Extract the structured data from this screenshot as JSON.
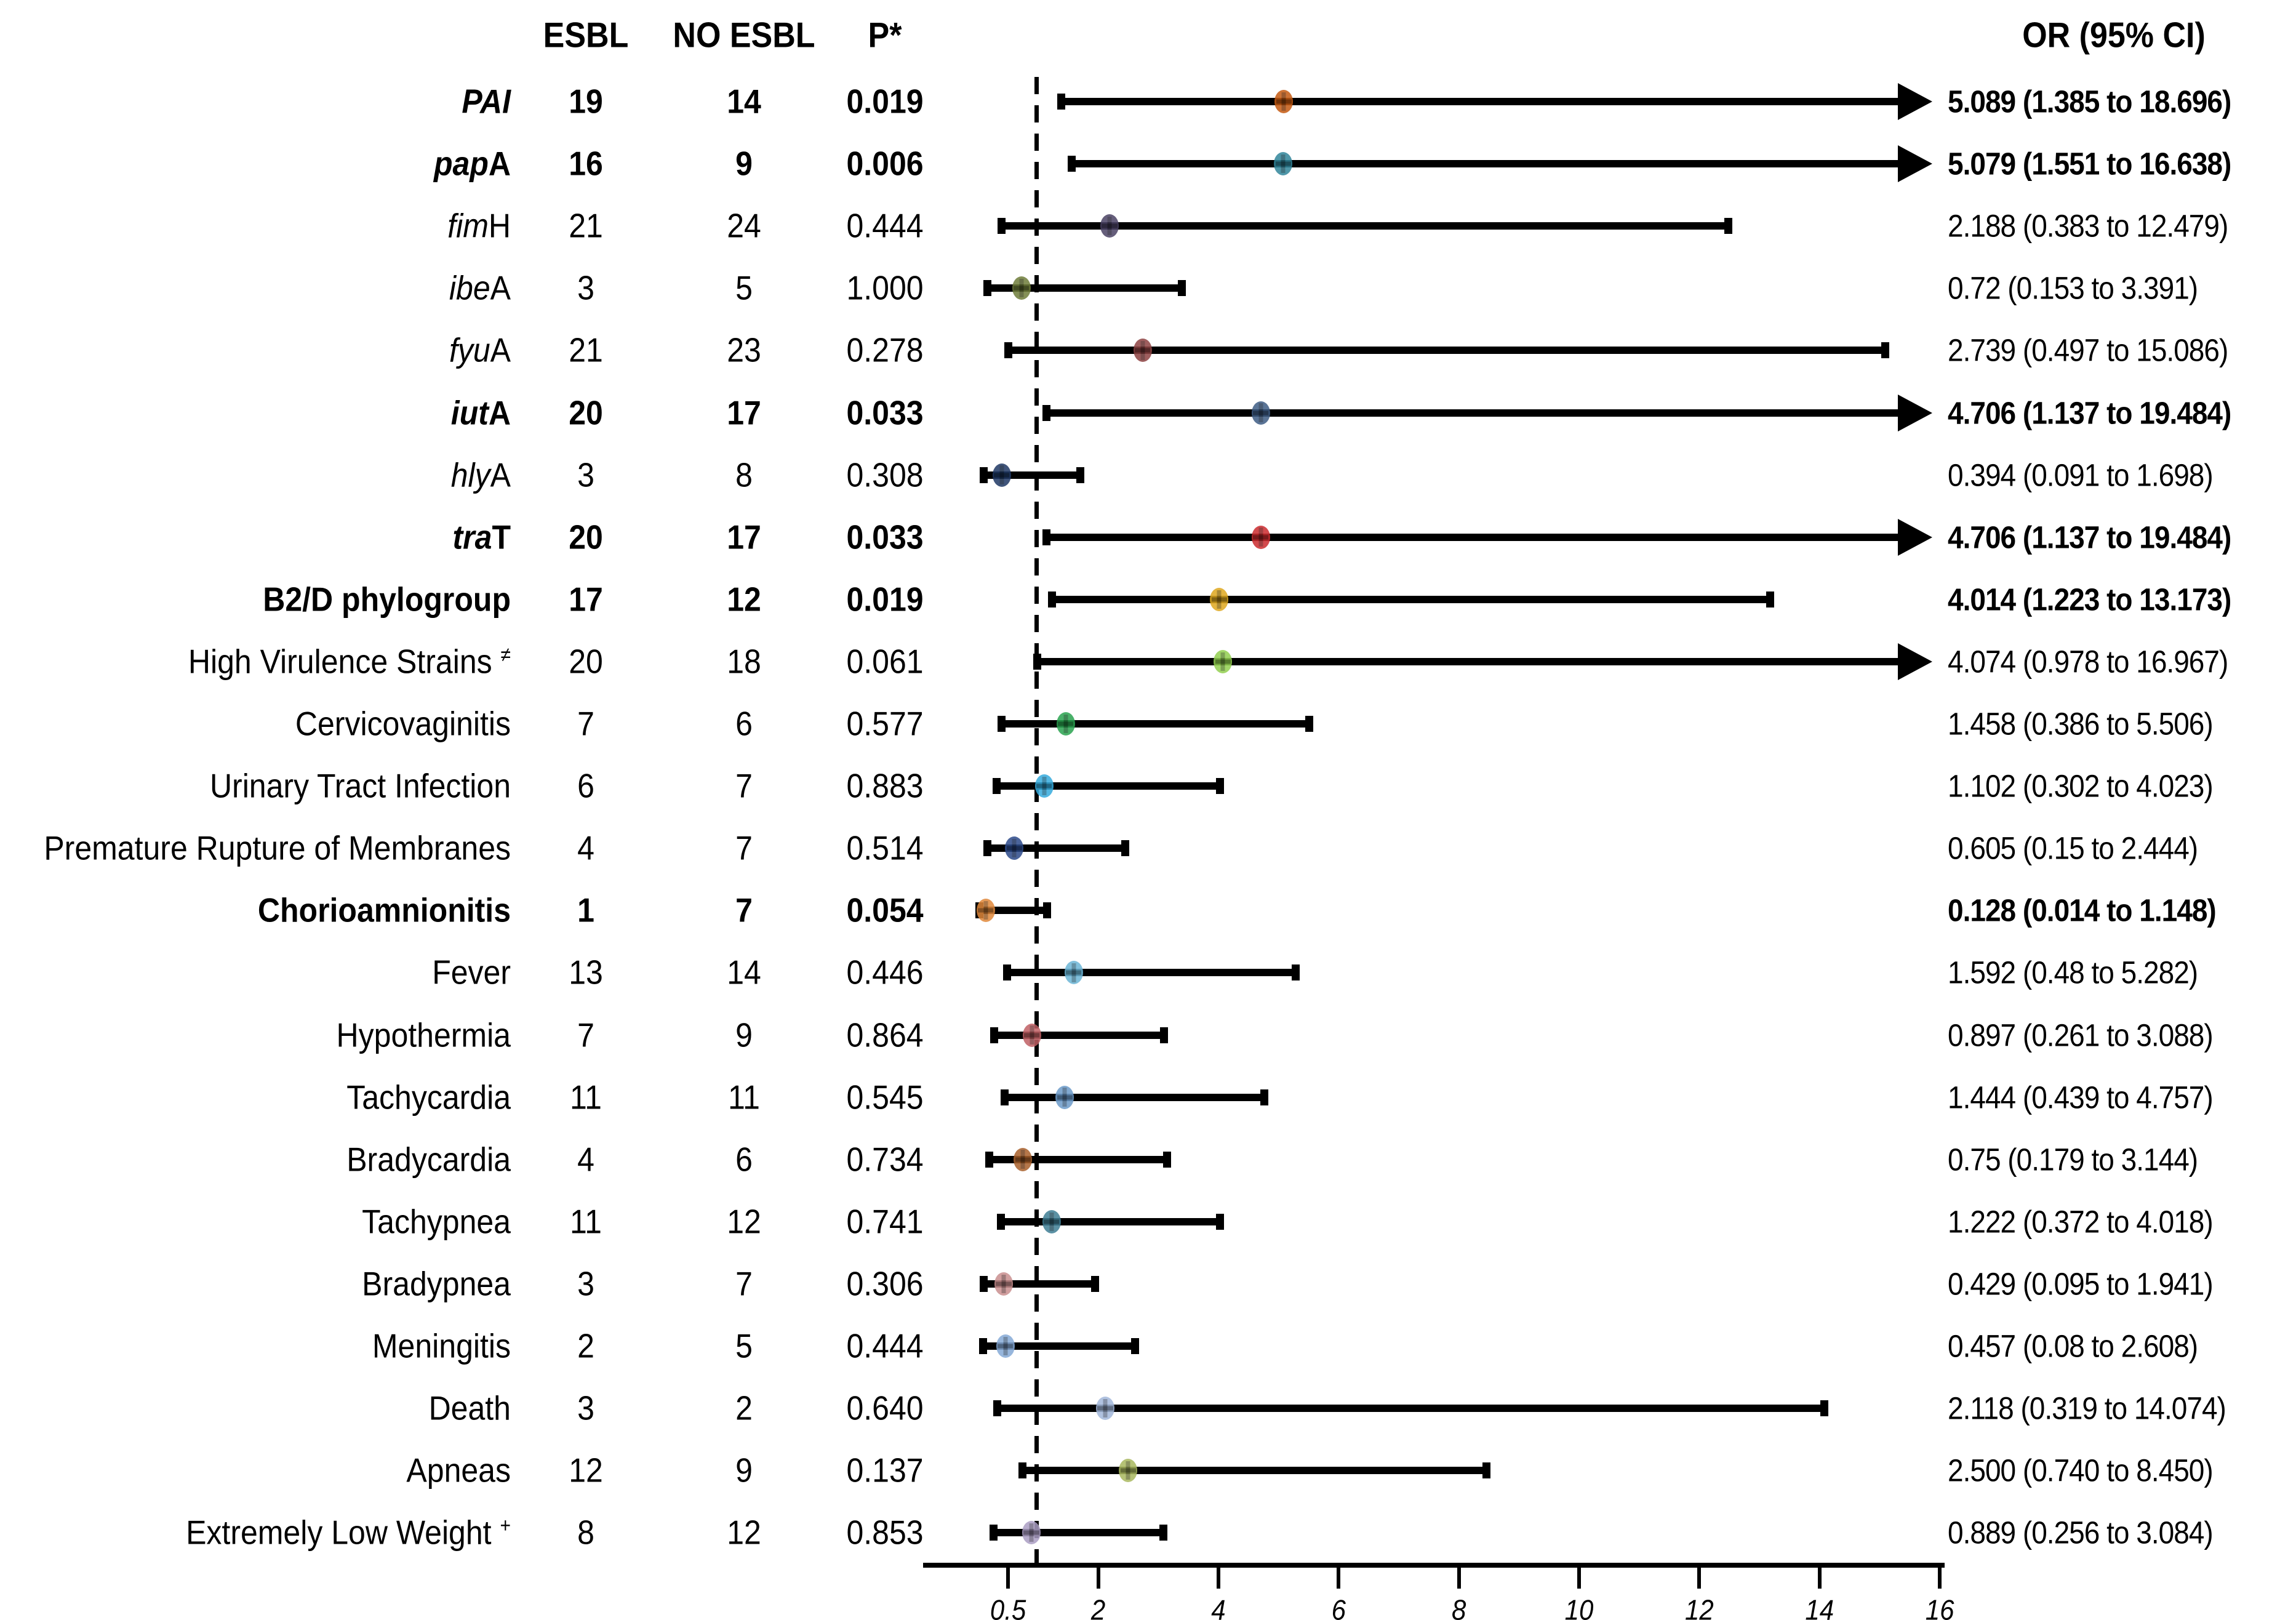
{
  "header": {
    "col_esbl": "ESBL",
    "col_no_esbl": "NO ESBL",
    "col_p": "P*",
    "col_or": "OR (95% CI)"
  },
  "axis": {
    "tick_labels": [
      "0.5",
      "2",
      "4",
      "6",
      "8",
      "10",
      "12",
      "14",
      "16"
    ],
    "tick_values": [
      0.5,
      2,
      4,
      6,
      8,
      10,
      12,
      14,
      16
    ],
    "min": 0,
    "max": 16,
    "reference_line_value": 1
  },
  "chart_data": {
    "type": "scatter",
    "subtype": "forest-plot",
    "title": "",
    "xlabel": "",
    "ylabel": "",
    "legend": "none",
    "grid": false,
    "x_range": [
      0,
      16.6
    ],
    "reference_line": 1,
    "rows": [
      {
        "label": "PAI",
        "label_parts": [
          {
            "text": "PAI",
            "italic": true
          }
        ],
        "bold": true,
        "esbl": "19",
        "no_esbl": "14",
        "p": "0.019",
        "or": 5.089,
        "ci_low": 1.385,
        "ci_high": 18.696,
        "or_text": "5.089 (1.385 to 18.696)",
        "arrow_right": true,
        "color": "#c55a11"
      },
      {
        "label": "papA",
        "label_parts": [
          {
            "text": "pap",
            "italic": true
          },
          {
            "text": "A",
            "italic": false
          }
        ],
        "bold": true,
        "esbl": "16",
        "no_esbl": "9",
        "p": "0.006",
        "or": 5.079,
        "ci_low": 1.551,
        "ci_high": 16.638,
        "or_text": "5.079 (1.551 to 16.638)",
        "arrow_right": true,
        "color": "#31859b"
      },
      {
        "label": "fimH",
        "label_parts": [
          {
            "text": "fim",
            "italic": true
          },
          {
            "text": "H",
            "italic": false
          }
        ],
        "bold": false,
        "esbl": "21",
        "no_esbl": "24",
        "p": "0.444",
        "or": 2.188,
        "ci_low": 0.383,
        "ci_high": 12.479,
        "or_text": "2.188 (0.383 to 12.479)",
        "arrow_right": false,
        "color": "#4b4265"
      },
      {
        "label": "ibeA",
        "label_parts": [
          {
            "text": "ibe",
            "italic": true
          },
          {
            "text": "A",
            "italic": false
          }
        ],
        "bold": false,
        "esbl": "3",
        "no_esbl": "5",
        "p": "1.000",
        "or": 0.72,
        "ci_low": 0.153,
        "ci_high": 3.391,
        "or_text": "0.72 (0.153 to 3.391)",
        "arrow_right": false,
        "color": "#6f7d3a"
      },
      {
        "label": "fyuA",
        "label_parts": [
          {
            "text": "fyu",
            "italic": true
          },
          {
            "text": "A",
            "italic": false
          }
        ],
        "bold": false,
        "esbl": "21",
        "no_esbl": "23",
        "p": "0.278",
        "or": 2.739,
        "ci_low": 0.497,
        "ci_high": 15.086,
        "or_text": "2.739 (0.497 to 15.086)",
        "arrow_right": false,
        "color": "#8e4343"
      },
      {
        "label": "iutA",
        "label_parts": [
          {
            "text": "iut",
            "italic": true
          },
          {
            "text": "A",
            "italic": false
          }
        ],
        "bold": true,
        "esbl": "20",
        "no_esbl": "17",
        "p": "0.033",
        "or": 4.706,
        "ci_low": 1.137,
        "ci_high": 19.484,
        "or_text": "4.706 (1.137 to 19.484)",
        "arrow_right": true,
        "color": "#3e5c84"
      },
      {
        "label": "hlyA",
        "label_parts": [
          {
            "text": "hly",
            "italic": true
          },
          {
            "text": "A",
            "italic": false
          }
        ],
        "bold": false,
        "esbl": "3",
        "no_esbl": "8",
        "p": "0.308",
        "or": 0.394,
        "ci_low": 0.091,
        "ci_high": 1.698,
        "or_text": "0.394 (0.091 to 1.698)",
        "arrow_right": false,
        "color": "#1f3864"
      },
      {
        "label": "traT",
        "label_parts": [
          {
            "text": "tra",
            "italic": true
          },
          {
            "text": "T",
            "italic": false
          }
        ],
        "bold": true,
        "esbl": "20",
        "no_esbl": "17",
        "p": "0.033",
        "or": 4.706,
        "ci_low": 1.137,
        "ci_high": 19.484,
        "or_text": "4.706 (1.137 to 19.484)",
        "arrow_right": true,
        "color": "#cc2b2e"
      },
      {
        "label": "B2/D phylogroup",
        "label_parts": [
          {
            "text": "B2/D phylogroup",
            "italic": false
          }
        ],
        "bold": true,
        "esbl": "17",
        "no_esbl": "12",
        "p": "0.019",
        "or": 4.014,
        "ci_low": 1.223,
        "ci_high": 13.173,
        "or_text": "4.014 (1.223 to 13.173)",
        "arrow_right": false,
        "color": "#dfa81e"
      },
      {
        "label": "High Virulence Strains",
        "label_parts": [
          {
            "text": "High Virulence Strains ",
            "italic": false
          },
          {
            "text": "≠",
            "italic": false,
            "sup": true
          }
        ],
        "bold": false,
        "esbl": "20",
        "no_esbl": "18",
        "p": "0.061",
        "or": 4.074,
        "ci_low": 0.978,
        "ci_high": 16.967,
        "or_text": "4.074 (0.978 to 16.967)",
        "arrow_right": true,
        "color": "#92d050"
      },
      {
        "label": "Cervicovaginitis",
        "label_parts": [
          {
            "text": "Cervicovaginitis",
            "italic": false
          }
        ],
        "bold": false,
        "esbl": "7",
        "no_esbl": "6",
        "p": "0.577",
        "or": 1.458,
        "ci_low": 0.386,
        "ci_high": 5.506,
        "or_text": "1.458 (0.386 to 5.506)",
        "arrow_right": false,
        "color": "#2aa350"
      },
      {
        "label": "Urinary Tract Infection",
        "label_parts": [
          {
            "text": "Urinary Tract Infection",
            "italic": false
          }
        ],
        "bold": false,
        "esbl": "6",
        "no_esbl": "7",
        "p": "0.883",
        "or": 1.102,
        "ci_low": 0.302,
        "ci_high": 4.023,
        "or_text": "1.102 (0.302 to 4.023)",
        "arrow_right": false,
        "color": "#36abdd"
      },
      {
        "label": "Premature Rupture of Membranes",
        "label_parts": [
          {
            "text": "Premature Rupture of Membranes",
            "italic": false
          }
        ],
        "bold": false,
        "esbl": "4",
        "no_esbl": "7",
        "p": "0.514",
        "or": 0.605,
        "ci_low": 0.15,
        "ci_high": 2.444,
        "or_text": "0.605 (0.15 to 2.444)",
        "arrow_right": false,
        "color": "#2c4a8a"
      },
      {
        "label": "Chorioamnionitis",
        "label_parts": [
          {
            "text": "Chorioamnionitis",
            "italic": false
          }
        ],
        "bold": true,
        "esbl": "1",
        "no_esbl": "7",
        "p": "0.054",
        "or": 0.128,
        "ci_low": 0.014,
        "ci_high": 1.148,
        "or_text": "0.128 (0.014 to 1.148)",
        "arrow_right": false,
        "color": "#e0883a"
      },
      {
        "label": "Fever",
        "label_parts": [
          {
            "text": "Fever",
            "italic": false
          }
        ],
        "bold": false,
        "esbl": "13",
        "no_esbl": "14",
        "p": "0.446",
        "or": 1.592,
        "ci_low": 0.48,
        "ci_high": 5.282,
        "or_text": "1.592 (0.48 to 5.282)",
        "arrow_right": false,
        "color": "#6cb6d7"
      },
      {
        "label": "Hypothermia",
        "label_parts": [
          {
            "text": "Hypothermia",
            "italic": false
          }
        ],
        "bold": false,
        "esbl": "7",
        "no_esbl": "9",
        "p": "0.864",
        "or": 0.897,
        "ci_low": 0.261,
        "ci_high": 3.088,
        "or_text": "0.897 (0.261 to 3.088)",
        "arrow_right": false,
        "color": "#c06064"
      },
      {
        "label": "Tachycardia",
        "label_parts": [
          {
            "text": "Tachycardia",
            "italic": false
          }
        ],
        "bold": false,
        "esbl": "11",
        "no_esbl": "11",
        "p": "0.545",
        "or": 1.444,
        "ci_low": 0.439,
        "ci_high": 4.757,
        "or_text": "1.444 (0.439 to 4.757)",
        "arrow_right": false,
        "color": "#6c9bca"
      },
      {
        "label": "Bradycardia",
        "label_parts": [
          {
            "text": "Bradycardia",
            "italic": false
          }
        ],
        "bold": false,
        "esbl": "4",
        "no_esbl": "6",
        "p": "0.734",
        "or": 0.75,
        "ci_low": 0.179,
        "ci_high": 3.144,
        "or_text": "0.75 (0.179 to 3.144)",
        "arrow_right": false,
        "color": "#a9602b"
      },
      {
        "label": "Tachypnea",
        "label_parts": [
          {
            "text": "Tachypnea",
            "italic": false
          }
        ],
        "bold": false,
        "esbl": "11",
        "no_esbl": "12",
        "p": "0.741",
        "or": 1.222,
        "ci_low": 0.372,
        "ci_high": 4.018,
        "or_text": "1.222 (0.372 to 4.018)",
        "arrow_right": false,
        "color": "#3f7e95"
      },
      {
        "label": "Bradypnea",
        "label_parts": [
          {
            "text": "Bradypnea",
            "italic": false
          }
        ],
        "bold": false,
        "esbl": "3",
        "no_esbl": "7",
        "p": "0.306",
        "or": 0.429,
        "ci_low": 0.095,
        "ci_high": 1.941,
        "or_text": "0.429 (0.095 to 1.941)",
        "arrow_right": false,
        "color": "#c98f8f"
      },
      {
        "label": "Meningitis",
        "label_parts": [
          {
            "text": "Meningitis",
            "italic": false
          }
        ],
        "bold": false,
        "esbl": "2",
        "no_esbl": "5",
        "p": "0.444",
        "or": 0.457,
        "ci_low": 0.08,
        "ci_high": 2.608,
        "or_text": "0.457 (0.08 to 2.608)",
        "arrow_right": false,
        "color": "#85aad7"
      },
      {
        "label": "Death",
        "label_parts": [
          {
            "text": "Death",
            "italic": false
          }
        ],
        "bold": false,
        "esbl": "3",
        "no_esbl": "2",
        "p": "0.640",
        "or": 2.118,
        "ci_low": 0.319,
        "ci_high": 14.074,
        "or_text": "2.118 (0.319 to 14.074)",
        "arrow_right": false,
        "color": "#a3b8db"
      },
      {
        "label": "Apneas",
        "label_parts": [
          {
            "text": "Apneas",
            "italic": false
          }
        ],
        "bold": false,
        "esbl": "12",
        "no_esbl": "9",
        "p": "0.137",
        "or": 2.5,
        "ci_low": 0.74,
        "ci_high": 8.45,
        "or_text": "2.500 (0.740 to 8.450)",
        "arrow_right": false,
        "color": "#a9b85f"
      },
      {
        "label": "Extremely Low Weight",
        "label_parts": [
          {
            "text": "Extremely Low Weight ",
            "italic": false
          },
          {
            "text": "+",
            "italic": false,
            "sup": true
          }
        ],
        "bold": false,
        "esbl": "8",
        "no_esbl": "12",
        "p": "0.853",
        "or": 0.889,
        "ci_low": 0.256,
        "ci_high": 3.084,
        "or_text": "0.889 (0.256 to 3.084)",
        "arrow_right": false,
        "color": "#ab9ec4"
      }
    ]
  }
}
